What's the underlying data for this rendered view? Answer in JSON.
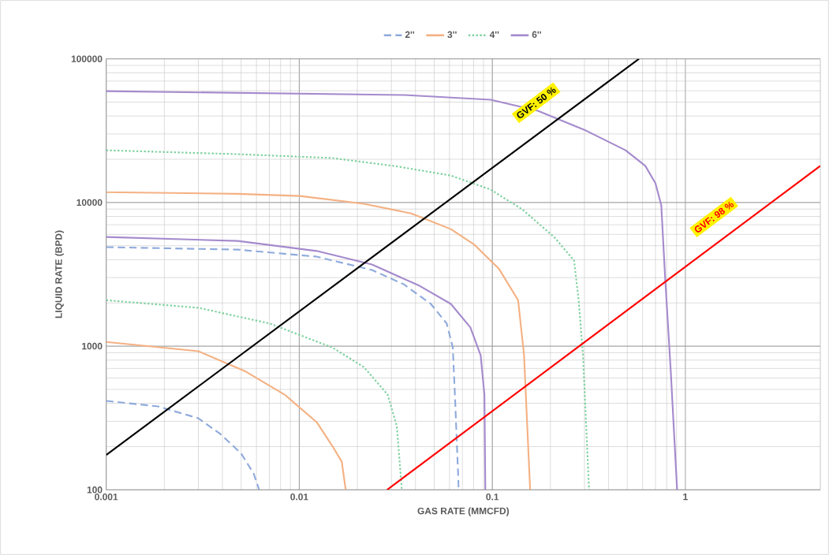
{
  "chart_data": {
    "type": "line",
    "xlabel": "GAS RATE (MMCFD)",
    "ylabel": "LIQUID RATE (BPD)",
    "log": "xy",
    "grid": true,
    "legend": "top",
    "marker": "none",
    "xlim": [
      0.001,
      5
    ],
    "ylim": [
      100,
      100000
    ],
    "xticks": [
      0.001,
      0.01,
      0.1,
      1
    ],
    "yticks": [
      100,
      1000,
      10000,
      100000
    ],
    "series": [
      {
        "name": "2''",
        "color": "#8faadc",
        "line_style": "dashed",
        "x": [
          0.001,
          0.0048,
          0.0123,
          0.0238,
          0.0347,
          0.048,
          0.058,
          0.0624,
          0.064,
          0.067
        ],
        "values": [
          4890,
          4700,
          4200,
          3390,
          2700,
          1970,
          1440,
          980,
          460,
          100
        ]
      },
      {
        "color": "#8faadc",
        "line_style": "dashed",
        "x": [
          0.001,
          0.00185,
          0.003,
          0.0039,
          0.005,
          0.0058,
          0.0062
        ],
        "values": [
          416,
          381,
          315,
          245,
          179,
          130,
          100
        ]
      },
      {
        "name": "3''",
        "color": "#f4b183",
        "line_style": "solid",
        "x": [
          0.001,
          0.0048,
          0.0101,
          0.0216,
          0.038,
          0.061,
          0.081,
          0.108,
          0.136,
          0.146,
          0.157
        ],
        "values": [
          11800,
          11500,
          11100,
          9800,
          8400,
          6530,
          5070,
          3470,
          2090,
          865,
          100
        ]
      },
      {
        "color": "#f4b183",
        "line_style": "solid",
        "x": [
          0.001,
          0.003,
          0.0052,
          0.0084,
          0.0123,
          0.0148,
          0.0166,
          0.0174
        ],
        "values": [
          1070,
          923,
          673,
          460,
          296,
          203,
          157,
          100
        ]
      },
      {
        "name": "4''",
        "color": "#7fd1a0",
        "line_style": "dotted",
        "x": [
          0.001,
          0.0048,
          0.0148,
          0.0316,
          0.061,
          0.098,
          0.143,
          0.209,
          0.265,
          0.28,
          0.295,
          0.317
        ],
        "values": [
          23100,
          21700,
          20400,
          17900,
          15400,
          12300,
          8950,
          5750,
          3950,
          2090,
          865,
          100
        ]
      },
      {
        "color": "#7fd1a0",
        "line_style": "dotted",
        "x": [
          0.001,
          0.003,
          0.007,
          0.0148,
          0.0216,
          0.0287,
          0.032,
          0.034
        ],
        "values": [
          2090,
          1850,
          1440,
          980,
          716,
          460,
          278,
          100
        ]
      },
      {
        "name": "6''",
        "color": "#a58bcd",
        "line_style": "solid",
        "x": [
          0.001,
          0.035,
          0.098,
          0.172,
          0.305,
          0.49,
          0.62,
          0.7,
          0.75,
          0.785,
          0.84,
          0.906
        ],
        "values": [
          59600,
          56000,
          51900,
          43500,
          31700,
          23100,
          18000,
          13600,
          9600,
          3060,
          670,
          100
        ]
      },
      {
        "color": "#a58bcd",
        "line_style": "solid",
        "x": [
          0.001,
          0.0048,
          0.0123,
          0.0238,
          0.042,
          0.061,
          0.077,
          0.087,
          0.091,
          0.092
        ],
        "values": [
          5750,
          5400,
          4600,
          3700,
          2630,
          1970,
          1350,
          865,
          460,
          100
        ]
      },
      {
        "color": "#000000",
        "line_style": "solid",
        "x": [
          0.001,
          0.575
        ],
        "values": [
          175,
          100000
        ]
      },
      {
        "color": "#ff0000",
        "line_style": "solid",
        "x": [
          0.0285,
          5
        ],
        "values": [
          100,
          18000
        ]
      }
    ],
    "annotations": [
      "GVF: 50 %",
      "GVF: 98 %"
    ]
  }
}
